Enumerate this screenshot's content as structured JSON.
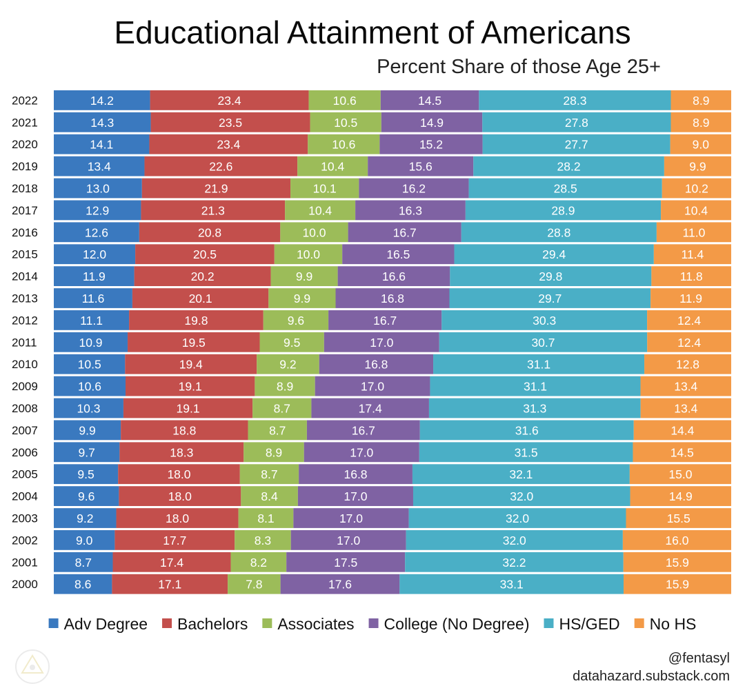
{
  "header": {
    "title": "Educational Attainment of Americans",
    "subtitle": "Percent Share of those Age 25+"
  },
  "credits": {
    "handle": "@fentasyl",
    "site": "datahazard.substack.com"
  },
  "logo": {
    "icon": "triangle-logo-icon"
  },
  "chart_data": {
    "type": "bar",
    "orientation": "horizontal",
    "stacked": true,
    "normalized_percent": true,
    "title": "Educational Attainment of Americans",
    "subtitle": "Percent Share of those Age 25+",
    "xlabel": "",
    "ylabel": "",
    "xlim": [
      0,
      100
    ],
    "grid": false,
    "legend_position": "bottom",
    "categories": [
      "2022",
      "2021",
      "2020",
      "2019",
      "2018",
      "2017",
      "2016",
      "2015",
      "2014",
      "2013",
      "2012",
      "2011",
      "2010",
      "2009",
      "2008",
      "2007",
      "2006",
      "2005",
      "2004",
      "2003",
      "2002",
      "2001",
      "2000"
    ],
    "series": [
      {
        "name": "Adv Degree",
        "color": "#3a79bf",
        "values": [
          14.2,
          14.3,
          14.1,
          13.4,
          13.0,
          12.9,
          12.6,
          12.0,
          11.9,
          11.6,
          11.1,
          10.9,
          10.5,
          10.6,
          10.3,
          9.9,
          9.7,
          9.5,
          9.6,
          9.2,
          9.0,
          8.7,
          8.6
        ],
        "labels": [
          "14.2",
          "14.3",
          "14.1",
          "13.4",
          "13.0",
          "12.9",
          "12.6",
          "12.0",
          "11.9",
          "11.6",
          "11.1",
          "10.9",
          "10.5",
          "10.6",
          "10.3",
          "9.9",
          "9.7",
          "9.5",
          "9.6",
          "9.2",
          "9.0",
          "8.7",
          "8.6"
        ]
      },
      {
        "name": "Bachelors",
        "color": "#c34f4c",
        "values": [
          23.4,
          23.5,
          23.4,
          22.6,
          21.9,
          21.3,
          20.8,
          20.5,
          20.2,
          20.1,
          19.8,
          19.5,
          19.4,
          19.1,
          19.1,
          18.8,
          18.3,
          18.0,
          18.0,
          18.0,
          17.7,
          17.4,
          17.1
        ],
        "labels": [
          "23.4",
          "23.5",
          "23.4",
          "22.6",
          "21.9",
          "21.3",
          "20.8",
          "20.5",
          "20.2",
          "20.1",
          "19.8",
          "19.5",
          "19.4",
          "19.1",
          "19.1",
          "18.8",
          "18.3",
          "18.0",
          "18.0",
          "18.0",
          "17.7",
          "17.4",
          "17.1"
        ]
      },
      {
        "name": "Associates",
        "color": "#9cbc59",
        "values": [
          10.6,
          10.5,
          10.6,
          10.4,
          10.1,
          10.4,
          10.0,
          10.0,
          9.9,
          9.9,
          9.6,
          9.5,
          9.2,
          8.9,
          8.7,
          8.7,
          8.9,
          8.7,
          8.4,
          8.1,
          8.3,
          8.2,
          7.8
        ],
        "labels": [
          "10.6",
          "10.5",
          "10.6",
          "10.4",
          "10.1",
          "10.4",
          "10.0",
          "10.0",
          "9.9",
          "9.9",
          "9.6",
          "9.5",
          "9.2",
          "8.9",
          "8.7",
          "8.7",
          "8.9",
          "8.7",
          "8.4",
          "8.1",
          "8.3",
          "8.2",
          "7.8"
        ]
      },
      {
        "name": "College (No Degree)",
        "color": "#7f62a3",
        "values": [
          14.5,
          14.9,
          15.2,
          15.6,
          16.2,
          16.3,
          16.7,
          16.5,
          16.6,
          16.8,
          16.7,
          17.0,
          16.8,
          17.0,
          17.4,
          16.7,
          17.0,
          16.8,
          17.0,
          17.0,
          17.0,
          17.5,
          17.6
        ],
        "labels": [
          "14.5",
          "14.9",
          "15.2",
          "15.6",
          "16.2",
          "16.3",
          "16.7",
          "16.5",
          "16.6",
          "16.8",
          "16.7",
          "17.0",
          "16.8",
          "17.0",
          "17.4",
          "16.7",
          "17.0",
          "16.8",
          "17.0",
          "17.0",
          "17.0",
          "17.5",
          "17.6"
        ]
      },
      {
        "name": "HS/GED",
        "color": "#4aafc6",
        "values": [
          28.3,
          27.8,
          27.7,
          28.2,
          28.5,
          28.9,
          28.8,
          29.4,
          29.8,
          29.7,
          30.3,
          30.7,
          31.1,
          31.1,
          31.3,
          31.6,
          31.5,
          32.1,
          32.0,
          32.0,
          32.0,
          32.2,
          33.1
        ],
        "labels": [
          "28.3",
          "27.8",
          "27.7",
          "28.2",
          "28.5",
          "28.9",
          "28.8",
          "29.4",
          "29.8",
          "29.7",
          "30.3",
          "30.7",
          "31.1",
          "31.1",
          "31.3",
          "31.6",
          "31.5",
          "32.1",
          "32.0",
          "32.0",
          "32.0",
          "32.2",
          "33.1"
        ]
      },
      {
        "name": "No HS",
        "color": "#f39a47",
        "values": [
          8.9,
          8.9,
          9.0,
          9.9,
          10.2,
          10.4,
          11.0,
          11.4,
          11.8,
          11.9,
          12.4,
          12.4,
          12.8,
          13.4,
          13.4,
          14.4,
          14.5,
          15.0,
          14.9,
          15.5,
          16.0,
          15.9,
          15.9
        ],
        "labels": [
          "8.9",
          "8.9",
          "9.0",
          "9.9",
          "10.2",
          "10.4",
          "11.0",
          "11.4",
          "11.8",
          "11.9",
          "12.4",
          "12.4",
          "12.8",
          "13.4",
          "13.4",
          "14.4",
          "14.5",
          "15.0",
          "14.9",
          "15.5",
          "16.0",
          "15.9",
          "15.9"
        ]
      }
    ]
  }
}
